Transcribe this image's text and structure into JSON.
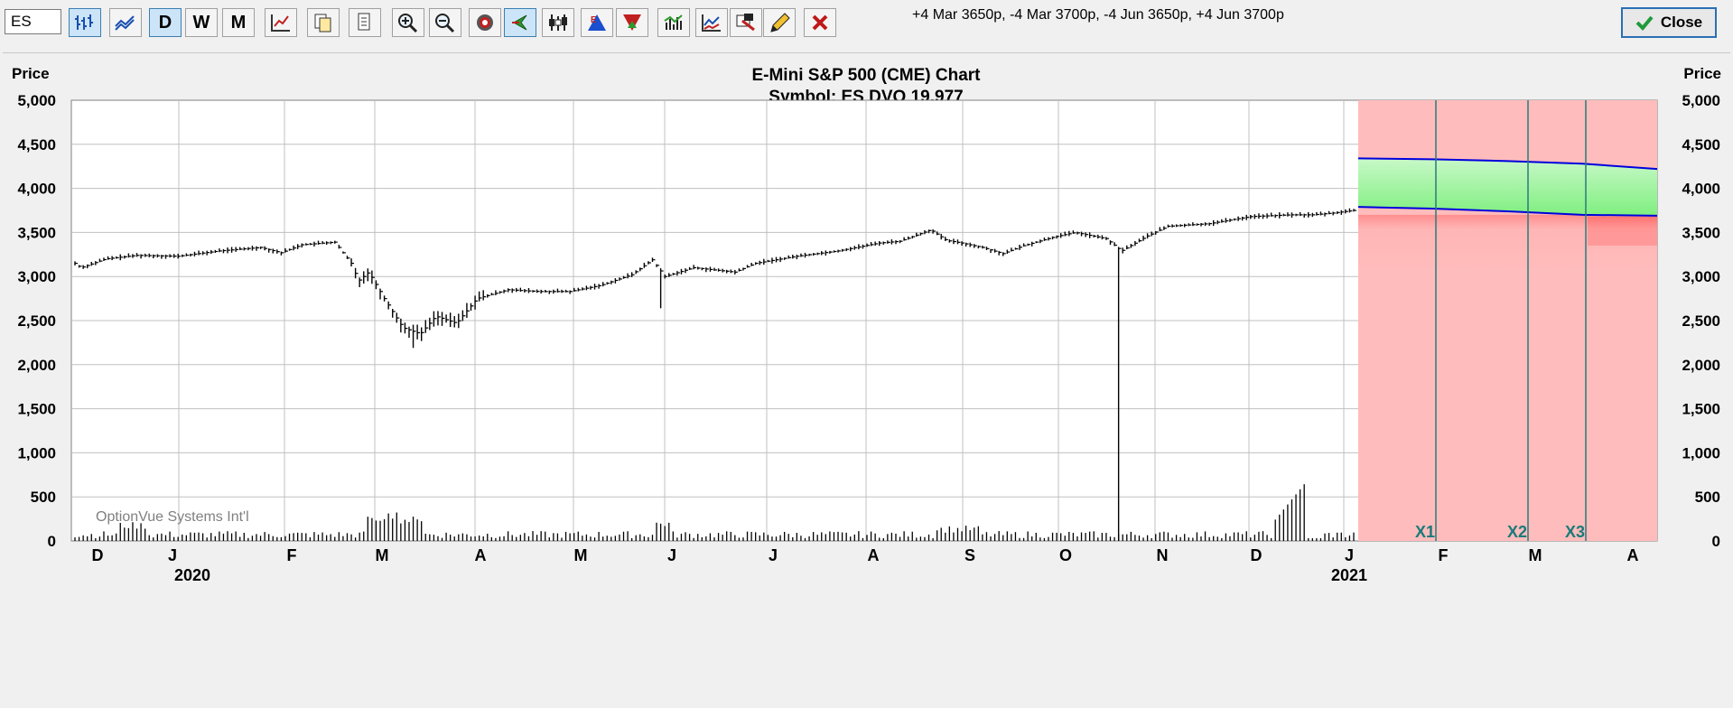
{
  "toolbar": {
    "symbol_value": "ES",
    "buttons": [
      {
        "name": "bar-chart-icon",
        "label": ""
      },
      {
        "name": "line-chart-icon",
        "label": ""
      },
      {
        "name": "daily-button",
        "label": "D"
      },
      {
        "name": "weekly-button",
        "label": "W"
      },
      {
        "name": "monthly-button",
        "label": "M"
      },
      {
        "name": "chart-settings-icon",
        "label": ""
      },
      {
        "name": "copy-icon",
        "label": ""
      },
      {
        "name": "print-icon",
        "label": ""
      },
      {
        "name": "zoom-in-icon",
        "label": ""
      },
      {
        "name": "zoom-out-icon",
        "label": ""
      },
      {
        "name": "target-icon",
        "label": ""
      },
      {
        "name": "cursor-icon",
        "label": ""
      },
      {
        "name": "candlestick-icon",
        "label": ""
      },
      {
        "name": "earnings-icon",
        "label": ""
      },
      {
        "name": "dividend-icon",
        "label": ""
      },
      {
        "name": "volume-icon",
        "label": ""
      },
      {
        "name": "indicator-icon",
        "label": ""
      },
      {
        "name": "annotate-icon",
        "label": ""
      },
      {
        "name": "pencil-icon",
        "label": ""
      },
      {
        "name": "delete-icon",
        "label": ""
      }
    ],
    "position_summary": "+4 Mar 3650p, -4 Mar 3700p, -4 Jun 3650p, +4 Jun 3700p",
    "close_label": "Close",
    "colors": {
      "active_button": "#cce4f7",
      "close_check": "#1f9a3a",
      "delete_x": "#c01818"
    }
  },
  "chart": {
    "title": "E-Mini S&P 500 (CME) Chart",
    "subtitle": "Symbol: ES  DVO 19,977",
    "left_axis_label": "Price",
    "right_axis_label": "Price",
    "watermark": "OptionVue Systems Int'l",
    "y_ticks": [
      "5,000",
      "4,500",
      "4,000",
      "3,500",
      "3,000",
      "2,500",
      "2,000",
      "1,500",
      "1,000",
      "500",
      "0"
    ],
    "months": [
      "D",
      "J",
      "F",
      "M",
      "A",
      "M",
      "J",
      "J",
      "A",
      "S",
      "O",
      "N",
      "D",
      "J",
      "F",
      "M",
      "A"
    ],
    "years": [
      "2020",
      "2021"
    ],
    "expirations": [
      "X1",
      "X2",
      "X3"
    ],
    "colors": {
      "profit": "#90ee90",
      "loss": "#ff7f7f",
      "risk_curve": "#0000dd",
      "bars": "#000000"
    }
  },
  "chart_data": {
    "type": "bar",
    "title": "E-Mini S&P 500 (CME) Chart",
    "subtitle": "Symbol: ES  DVO 19,977",
    "ylabel": "Price",
    "ylim": [
      0,
      5000
    ],
    "y_ticks": [
      0,
      500,
      1000,
      1500,
      2000,
      2500,
      3000,
      3500,
      4000,
      4500,
      5000
    ],
    "x_month_labels": [
      "D",
      "J",
      "F",
      "M",
      "A",
      "M",
      "J",
      "J",
      "A",
      "S",
      "O",
      "N",
      "D",
      "J",
      "F",
      "M",
      "A"
    ],
    "price_series_monthly_close": [
      {
        "month": "Dec 2019",
        "close": 3230
      },
      {
        "month": "Jan 2020",
        "close": 3220
      },
      {
        "month": "Feb 2020",
        "close": 2950
      },
      {
        "month": "Mar 2020",
        "close": 2580
      },
      {
        "month": "Apr 2020",
        "close": 2900
      },
      {
        "month": "May 2020",
        "close": 3040
      },
      {
        "month": "Jun 2020",
        "close": 3090
      },
      {
        "month": "Jul 2020",
        "close": 3260
      },
      {
        "month": "Aug 2020",
        "close": 3500
      },
      {
        "month": "Sep 2020",
        "close": 3360
      },
      {
        "month": "Oct 2020",
        "close": 3270
      },
      {
        "month": "Nov 2020",
        "close": 3620
      },
      {
        "month": "Dec 2020",
        "close": 3750
      },
      {
        "month": "Jan 2021",
        "close": 3780
      }
    ],
    "notable_lows": [
      {
        "month": "Mar 2020",
        "low": 2190
      },
      {
        "month": "Jun 2020",
        "low": 2640
      },
      {
        "month": "Sep 2020",
        "low": 0
      }
    ],
    "risk_curve_upper": [
      4340,
      4330,
      4310,
      4280,
      4220
    ],
    "risk_curve_lower": [
      3790,
      3770,
      3740,
      3700,
      3690
    ],
    "expiration_markers": [
      "X1",
      "X2",
      "X3"
    ]
  }
}
